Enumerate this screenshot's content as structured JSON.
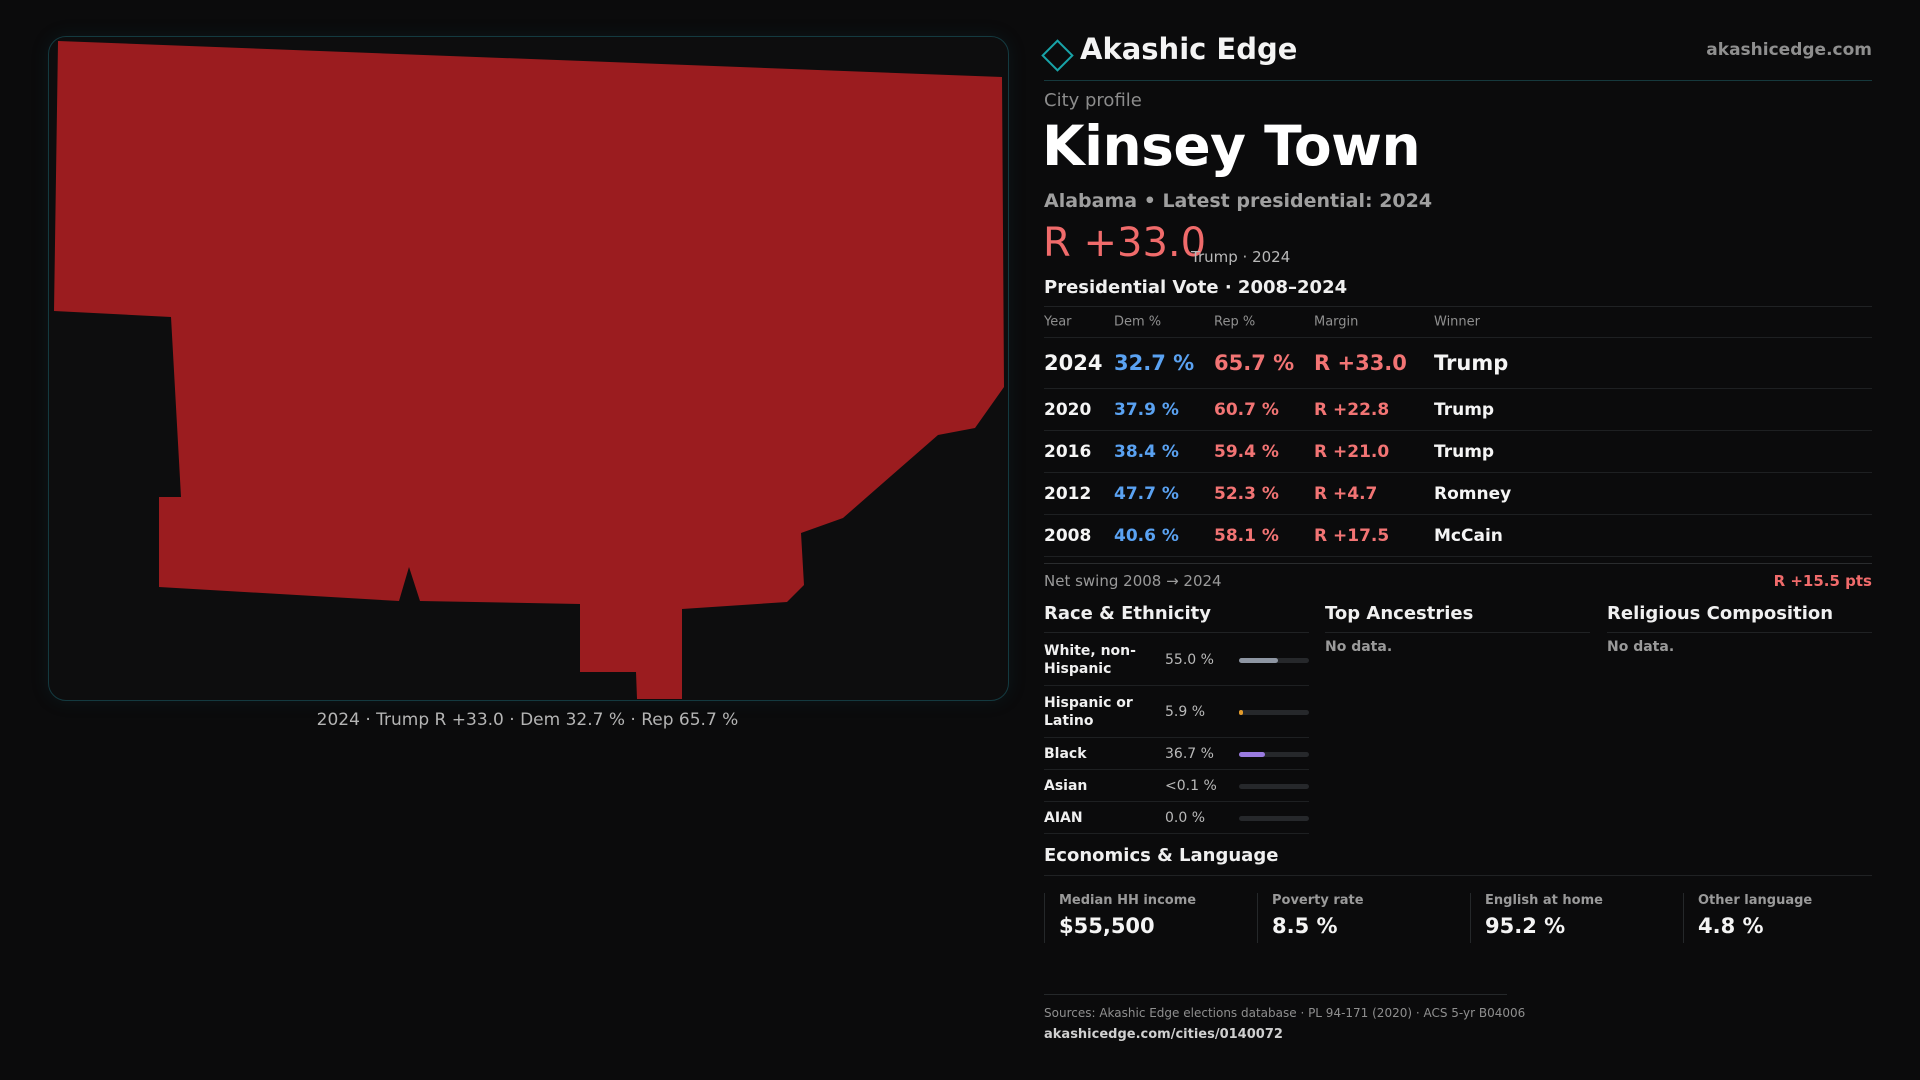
{
  "brand": {
    "name": "Akashic Edge",
    "url": "akashicedge.com",
    "logo_icon": "diamond-icon",
    "accent": "#18a3a8"
  },
  "profile": {
    "eyebrow": "City profile",
    "city": "Kinsey Town",
    "subline": "Alabama • Latest presidential: 2024",
    "margin": "R +33.0",
    "margin_note": "Trump · 2024"
  },
  "map": {
    "caption": "2024 · Trump R +33.0 · Dem 32.7 % · Rep 65.7 %",
    "fill_color": "#9b1c1f"
  },
  "vote": {
    "title": "Presidential Vote · 2008–2024",
    "headers": {
      "year": "Year",
      "dem": "Dem %",
      "rep": "Rep %",
      "margin": "Margin",
      "winner": "Winner"
    },
    "rows": [
      {
        "year": "2024",
        "dem": "32.7 %",
        "rep": "65.7 %",
        "margin": "R +33.0",
        "winner": "Trump"
      },
      {
        "year": "2020",
        "dem": "37.9 %",
        "rep": "60.7 %",
        "margin": "R +22.8",
        "winner": "Trump"
      },
      {
        "year": "2016",
        "dem": "38.4 %",
        "rep": "59.4 %",
        "margin": "R +21.0",
        "winner": "Trump"
      },
      {
        "year": "2012",
        "dem": "47.7 %",
        "rep": "52.3 %",
        "margin": "R +4.7",
        "winner": "Romney"
      },
      {
        "year": "2008",
        "dem": "40.6 %",
        "rep": "58.1 %",
        "margin": "R +17.5",
        "winner": "McCain"
      }
    ],
    "swing_label": "Net swing 2008 → 2024",
    "swing_value": "R +15.5 pts",
    "colors": {
      "dem": "#5aa2f2",
      "rep": "#f27474"
    }
  },
  "race": {
    "title": "Race & Ethnicity",
    "rows": [
      {
        "label": "White, non-Hispanic",
        "pct": "55.0 %",
        "fraction": 0.55,
        "color": "#8e96a3"
      },
      {
        "label": "Hispanic or Latino",
        "pct": "5.9 %",
        "fraction": 0.059,
        "color": "#e39b2b"
      },
      {
        "label": "Black",
        "pct": "36.7 %",
        "fraction": 0.367,
        "color": "#9a7be0"
      },
      {
        "label": "Asian",
        "pct": "<0.1 %",
        "fraction": 0.0,
        "color": "#5ac0a8"
      },
      {
        "label": "AIAN",
        "pct": "0.0 %",
        "fraction": 0.0,
        "color": "#c07a5a"
      }
    ]
  },
  "ancestries": {
    "title": "Top Ancestries",
    "empty": "No data."
  },
  "religion": {
    "title": "Religious Composition",
    "empty": "No data."
  },
  "economics": {
    "title": "Economics & Language",
    "cells": [
      {
        "label": "Median HH income",
        "value": "$55,500"
      },
      {
        "label": "Poverty rate",
        "value": "8.5 %"
      },
      {
        "label": "English at home",
        "value": "95.2 %"
      },
      {
        "label": "Other language",
        "value": "4.8 %"
      }
    ]
  },
  "sources": {
    "text": "Sources: Akashic Edge elections database · PL 94-171 (2020) · ACS 5-yr B04006",
    "url": "akashicedge.com/cities/0140072"
  }
}
